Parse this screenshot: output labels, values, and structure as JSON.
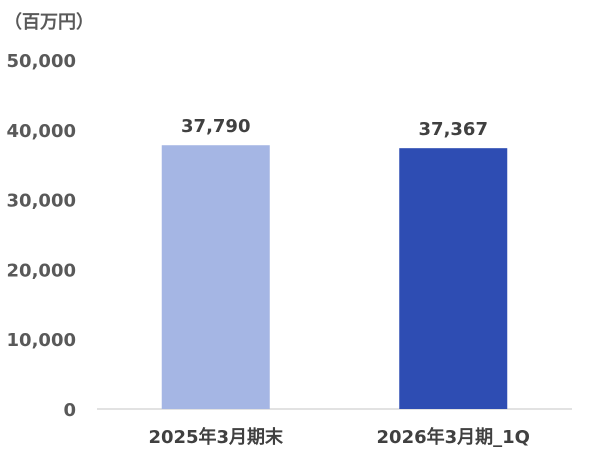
{
  "chart_data": {
    "type": "bar",
    "unit_label": "（百万円）",
    "categories": [
      "2025年3月期末",
      "2026年3月期_1Q"
    ],
    "values": [
      37790,
      37367
    ],
    "data_labels": [
      "37,790",
      "37,367"
    ],
    "bar_colors": [
      "#A5B6E4",
      "#2E4DB3"
    ],
    "yticks": [
      "0",
      "10,000",
      "20,000",
      "30,000",
      "40,000",
      "50,000"
    ],
    "ylim": [
      0,
      50000
    ],
    "grid": false,
    "legend": "none"
  }
}
